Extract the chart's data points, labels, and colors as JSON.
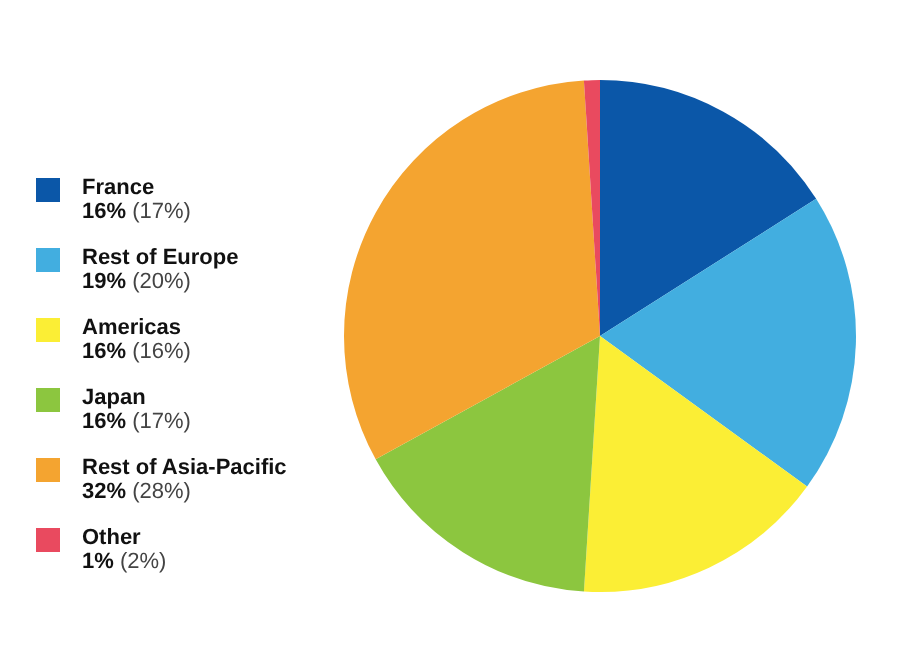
{
  "chart_data": {
    "type": "pie",
    "categories": [
      "France",
      "Rest of Europe",
      "Americas",
      "Japan",
      "Rest of Asia-Pacific",
      "Other"
    ],
    "values": [
      16,
      19,
      16,
      16,
      32,
      1
    ],
    "value_labels": [
      "16% (17%)",
      "19% (20%)",
      "16% (16%)",
      "16% (17%)",
      "32% (28%)",
      "1% (2%)"
    ],
    "colors": [
      "#0b57a8",
      "#42aee0",
      "#fbee35",
      "#8cc63f",
      "#f4a430",
      "#e94a5f"
    ],
    "legend": "left"
  }
}
